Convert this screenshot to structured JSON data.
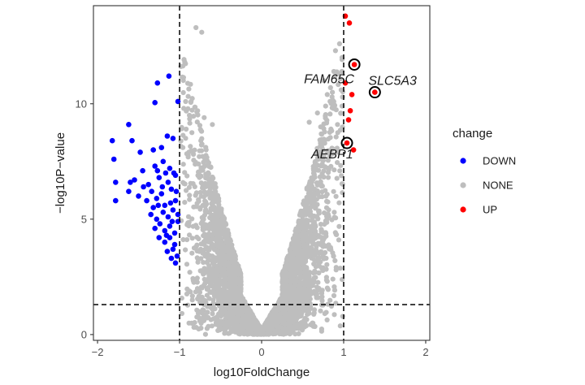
{
  "chart_data": {
    "type": "scatter",
    "title": "",
    "xlabel": "log10FoldChange",
    "ylabel": "−log10P−value",
    "xlim": [
      -2.05,
      2.05
    ],
    "ylim": [
      -0.25,
      14.25
    ],
    "x_ticks": [
      {
        "value": -2,
        "label": "−2"
      },
      {
        "value": -1,
        "label": "−1"
      },
      {
        "value": 0,
        "label": "0"
      },
      {
        "value": 1,
        "label": "1"
      },
      {
        "value": 2,
        "label": "2"
      }
    ],
    "y_ticks": [
      {
        "value": 0,
        "label": "0"
      },
      {
        "value": 5,
        "label": "5"
      },
      {
        "value": 10,
        "label": "10"
      }
    ],
    "thresholds": {
      "fold_change": [
        -1,
        1
      ],
      "neg_log10_p": 1.3
    },
    "legend": {
      "title": "change",
      "position": "right",
      "entries": [
        {
          "label": "DOWN",
          "color": "#0000ff"
        },
        {
          "label": "NONE",
          "color": "#bebebe"
        },
        {
          "label": "UP",
          "color": "#ff0000"
        }
      ]
    },
    "series": [
      {
        "name": "DOWN",
        "color": "#0000ff",
        "points": [
          [
            -1.13,
            11.2
          ],
          [
            -1.27,
            10.9
          ],
          [
            -1.02,
            10.1
          ],
          [
            -1.3,
            10.05
          ],
          [
            -1.62,
            9.1
          ],
          [
            -1.82,
            8.4
          ],
          [
            -1.58,
            8.4
          ],
          [
            -1.8,
            7.6
          ],
          [
            -1.48,
            7.9
          ],
          [
            -1.08,
            8.5
          ],
          [
            -1.45,
            7.1
          ],
          [
            -1.32,
            8.0
          ],
          [
            -1.22,
            8.1
          ],
          [
            -1.15,
            8.6
          ],
          [
            -1.78,
            6.6
          ],
          [
            -1.6,
            6.6
          ],
          [
            -1.55,
            6.7
          ],
          [
            -1.78,
            5.8
          ],
          [
            -1.62,
            6.2
          ],
          [
            -1.5,
            6.0
          ],
          [
            -1.38,
            6.5
          ],
          [
            -1.3,
            7.3
          ],
          [
            -1.25,
            6.8
          ],
          [
            -1.2,
            7.5
          ],
          [
            -1.12,
            7.2
          ],
          [
            -1.05,
            6.9
          ],
          [
            -1.4,
            5.8
          ],
          [
            -1.32,
            5.5
          ],
          [
            -1.28,
            5.9
          ],
          [
            -1.22,
            6.1
          ],
          [
            -1.18,
            5.6
          ],
          [
            -1.1,
            6.3
          ],
          [
            -1.05,
            5.8
          ],
          [
            -1.35,
            5.2
          ],
          [
            -1.28,
            5.0
          ],
          [
            -1.2,
            5.3
          ],
          [
            -1.14,
            5.1
          ],
          [
            -1.08,
            5.4
          ],
          [
            -1.02,
            5.2
          ],
          [
            -1.3,
            4.6
          ],
          [
            -1.24,
            4.8
          ],
          [
            -1.18,
            4.5
          ],
          [
            -1.12,
            4.7
          ],
          [
            -1.06,
            4.4
          ],
          [
            -1.25,
            4.2
          ],
          [
            -1.18,
            4.0
          ],
          [
            -1.12,
            4.2
          ],
          [
            -1.06,
            3.9
          ],
          [
            -1.15,
            3.6
          ],
          [
            -1.08,
            3.7
          ],
          [
            -1.03,
            3.4
          ],
          [
            -1.1,
            3.3
          ],
          [
            -1.05,
            3.1
          ],
          [
            -1.02,
            4.9
          ],
          [
            -1.09,
            4.9
          ],
          [
            -1.16,
            4.3
          ],
          [
            -1.04,
            6.2
          ],
          [
            -1.11,
            5.7
          ],
          [
            -1.26,
            5.6
          ],
          [
            -1.34,
            6.2
          ],
          [
            -1.44,
            6.4
          ],
          [
            -1.14,
            6.6
          ],
          [
            -1.21,
            6.4
          ],
          [
            -1.07,
            7.0
          ],
          [
            -1.17,
            7.0
          ],
          [
            -1.27,
            7.1
          ]
        ]
      },
      {
        "name": "UP",
        "color": "#ff0000",
        "points": [
          [
            1.02,
            13.8
          ],
          [
            1.07,
            13.5
          ],
          [
            1.13,
            11.7
          ],
          [
            1.02,
            10.9
          ],
          [
            1.1,
            10.4
          ],
          [
            1.38,
            10.5
          ],
          [
            1.08,
            9.7
          ],
          [
            1.04,
            8.3
          ],
          [
            1.06,
            9.3
          ],
          [
            1.12,
            8.0
          ]
        ]
      },
      {
        "name": "NONE",
        "color": "#bebebe",
        "points": [
          [
            -0.8,
            13.3
          ],
          [
            -0.73,
            13.1
          ],
          [
            0.95,
            12.6
          ],
          [
            0.9,
            12.3
          ],
          [
            0.98,
            12.0
          ],
          [
            0.88,
            11.4
          ],
          [
            0.93,
            11.3
          ],
          [
            0.76,
            11.0
          ],
          [
            0.84,
            10.7
          ],
          [
            0.8,
            10.4
          ],
          [
            0.97,
            10.6
          ],
          [
            -0.86,
            10.1
          ],
          [
            -0.95,
            9.8
          ],
          [
            -0.78,
            9.7
          ],
          [
            -0.7,
            9.4
          ],
          [
            -0.88,
            9.5
          ],
          [
            -0.6,
            9.1
          ],
          [
            0.58,
            9.2
          ],
          [
            0.68,
            9.6
          ],
          [
            0.78,
            9.9
          ],
          [
            0.88,
            9.8
          ],
          [
            0.72,
            9.0
          ],
          [
            0.98,
            9.9
          ],
          [
            -0.92,
            8.9
          ],
          [
            -0.96,
            8.1
          ]
        ]
      }
    ],
    "highlighted_genes": [
      {
        "gene": "FAM65C",
        "x": 1.13,
        "y": 11.7
      },
      {
        "gene": "SLC5A3",
        "x": 1.38,
        "y": 10.5
      },
      {
        "gene": "AEBP1",
        "x": 1.04,
        "y": 8.3
      }
    ]
  }
}
